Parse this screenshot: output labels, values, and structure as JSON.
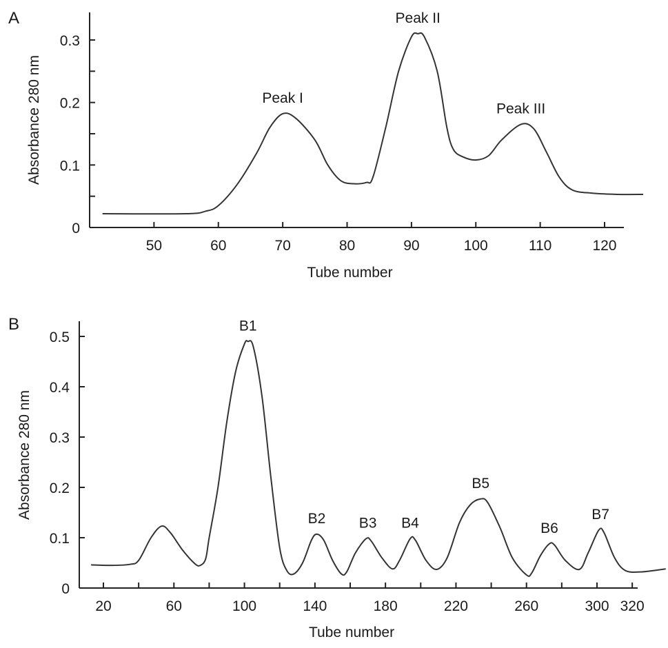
{
  "chart_data": [
    {
      "type": "line",
      "panel_label": "A",
      "xlabel": "Tube number",
      "ylabel": "Absorbance 280 nm",
      "xlim": [
        40,
        123
      ],
      "ylim": [
        0,
        0.33
      ],
      "xticks": [
        50,
        60,
        70,
        80,
        90,
        100,
        110,
        120
      ],
      "yticks": [
        0,
        0.1,
        0.2,
        0.3
      ],
      "yticks_labels": [
        "0",
        "0.1",
        "0.2",
        "0.3"
      ],
      "yminor": [
        0.05,
        0.15,
        0.25
      ],
      "grid": false,
      "line_color": "#333333",
      "x": [
        42,
        55,
        58,
        60,
        63,
        66,
        68,
        70,
        72,
        75,
        77,
        79,
        81,
        83,
        84,
        86,
        88,
        90,
        91,
        92,
        94,
        95.5,
        96.5,
        98,
        100,
        102,
        104,
        107,
        109,
        111,
        113,
        115,
        118,
        122,
        126
      ],
      "y": [
        0.022,
        0.022,
        0.026,
        0.035,
        0.07,
        0.12,
        0.16,
        0.182,
        0.175,
        0.14,
        0.1,
        0.075,
        0.07,
        0.072,
        0.08,
        0.16,
        0.25,
        0.305,
        0.31,
        0.305,
        0.25,
        0.16,
        0.125,
        0.113,
        0.108,
        0.115,
        0.14,
        0.165,
        0.158,
        0.12,
        0.08,
        0.06,
        0.055,
        0.053,
        0.053
      ],
      "annotations": [
        {
          "text": "Peak I",
          "x": 70,
          "y": 0.182
        },
        {
          "text": "Peak II",
          "x": 91,
          "y": 0.31
        },
        {
          "text": "Peak III",
          "x": 107,
          "y": 0.165
        }
      ]
    },
    {
      "type": "line",
      "panel_label": "B",
      "xlabel": "Tube number",
      "ylabel": "Absorbance 280 nm",
      "xlim": [
        6,
        323
      ],
      "ylim": [
        0,
        0.53
      ],
      "xticks": [
        20,
        60,
        100,
        140,
        180,
        220,
        260,
        300,
        320
      ],
      "xminor": [
        40,
        80,
        120,
        160,
        200,
        240,
        280
      ],
      "yticks": [
        0,
        0.1,
        0.2,
        0.3,
        0.4,
        0.5
      ],
      "yticks_labels": [
        "0",
        "0.1",
        "0.2",
        "0.3",
        "0.4",
        "0.5"
      ],
      "grid": false,
      "line_color": "#333333",
      "x": [
        13,
        25,
        35,
        40,
        47,
        53,
        58,
        65,
        72,
        75,
        78,
        80,
        85,
        90,
        95,
        100,
        102,
        105,
        110,
        115,
        120,
        124,
        128,
        133,
        138,
        141,
        145,
        150,
        155,
        158,
        163,
        169,
        172,
        178,
        184,
        188,
        194,
        197,
        203,
        209,
        215,
        222,
        228,
        234,
        238,
        245,
        252,
        260,
        263,
        268,
        273,
        276,
        282,
        290,
        295,
        301,
        304,
        310,
        316,
        325,
        339
      ],
      "y": [
        0.046,
        0.045,
        0.047,
        0.055,
        0.1,
        0.123,
        0.11,
        0.075,
        0.048,
        0.045,
        0.058,
        0.1,
        0.2,
        0.33,
        0.43,
        0.485,
        0.49,
        0.48,
        0.38,
        0.22,
        0.08,
        0.035,
        0.028,
        0.05,
        0.095,
        0.107,
        0.095,
        0.055,
        0.028,
        0.032,
        0.07,
        0.098,
        0.093,
        0.06,
        0.038,
        0.055,
        0.098,
        0.095,
        0.055,
        0.037,
        0.06,
        0.13,
        0.165,
        0.177,
        0.17,
        0.12,
        0.06,
        0.026,
        0.03,
        0.065,
        0.088,
        0.085,
        0.055,
        0.037,
        0.07,
        0.115,
        0.11,
        0.06,
        0.035,
        0.032,
        0.038
      ],
      "annotations": [
        {
          "text": "B1",
          "x": 102,
          "y": 0.49
        },
        {
          "text": "B2",
          "x": 141,
          "y": 0.107
        },
        {
          "text": "B3",
          "x": 170,
          "y": 0.098
        },
        {
          "text": "B4",
          "x": 194,
          "y": 0.098
        },
        {
          "text": "B5",
          "x": 234,
          "y": 0.177
        },
        {
          "text": "B6",
          "x": 273,
          "y": 0.088
        },
        {
          "text": "B7",
          "x": 302,
          "y": 0.115
        }
      ]
    }
  ]
}
